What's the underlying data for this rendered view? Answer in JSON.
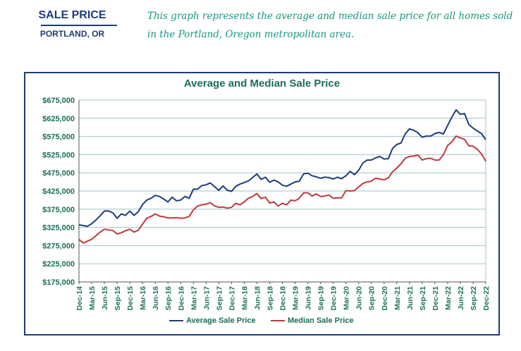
{
  "header": {
    "title": "SALE PRICE",
    "subtitle": "PORTLAND, OR",
    "description": "This graph represents the average and median sale price for all homes sold in the Portland, Oregon metropolitan area."
  },
  "chart_data": {
    "type": "line",
    "title": "Average and Median Sale Price",
    "xlabel": "",
    "ylabel": "",
    "ylim": [
      175000,
      675000
    ],
    "yticks": [
      175000,
      225000,
      275000,
      325000,
      375000,
      425000,
      475000,
      525000,
      575000,
      625000,
      675000
    ],
    "ytick_labels": [
      "$175,000",
      "$225,000",
      "$275,000",
      "$325,000",
      "$375,000",
      "$425,000",
      "$475,000",
      "$525,000",
      "$575,000",
      "$625,000",
      "$675,000"
    ],
    "xtick_labels": [
      "Dec-14",
      "Mar-15",
      "Jun-15",
      "Sep-15",
      "Dec-15",
      "Mar-16",
      "Jun-16",
      "Sep-16",
      "Dec-16",
      "Mar-17",
      "Jun-17",
      "Sep-17",
      "Dec-17",
      "Mar-18",
      "Jun-18",
      "Sep-18",
      "Dec-18",
      "Mar-19",
      "Jun-19",
      "Sep-19",
      "Dec-19",
      "Mar-20",
      "Jun-20",
      "Sep-20",
      "Dec-20",
      "Mar-21",
      "Jun-21",
      "Sep-21",
      "Dec-21",
      "Mar-22",
      "Jun-22",
      "Sep-22",
      "Dec-22"
    ],
    "grid": true,
    "legend_position": "bottom",
    "colors": {
      "average": "#1f3c78",
      "median": "#c0393b",
      "grid": "#9fc3c9",
      "tick_text": "#1b6e5a",
      "axis": "#555555"
    },
    "series": [
      {
        "name": "Average Sale Price",
        "values": [
          332000,
          330000,
          328000,
          335000,
          345000,
          357000,
          370000,
          370000,
          365000,
          350000,
          362000,
          358000,
          370000,
          358000,
          368000,
          388000,
          400000,
          405000,
          413000,
          410000,
          403000,
          395000,
          408000,
          398000,
          400000,
          410000,
          405000,
          430000,
          430000,
          440000,
          442000,
          447000,
          437000,
          427000,
          439000,
          427000,
          424000,
          438000,
          444000,
          448000,
          453000,
          462000,
          472000,
          457000,
          463000,
          449000,
          455000,
          450000,
          441000,
          438000,
          444000,
          450000,
          452000,
          472000,
          474000,
          467000,
          464000,
          460000,
          463000,
          462000,
          458000,
          463000,
          459000,
          467000,
          479000,
          470000,
          482000,
          502000,
          510000,
          510000,
          516000,
          520000,
          513000,
          514000,
          542000,
          553000,
          557000,
          582000,
          596000,
          592000,
          585000,
          573000,
          576000,
          576000,
          583000,
          586000,
          582000,
          605000,
          628000,
          648000,
          636000,
          638000,
          608000,
          598000,
          590000,
          583000,
          566000
        ]
      },
      {
        "name": "Median Sale Price",
        "values": [
          292000,
          282000,
          287000,
          292000,
          302000,
          312000,
          320000,
          318000,
          316000,
          307000,
          310000,
          316000,
          320000,
          312000,
          317000,
          334000,
          350000,
          355000,
          362000,
          356000,
          354000,
          351000,
          351000,
          352000,
          350000,
          351000,
          355000,
          373000,
          384000,
          387000,
          389000,
          393000,
          384000,
          380000,
          381000,
          378000,
          380000,
          391000,
          387000,
          395000,
          405000,
          410000,
          418000,
          404000,
          408000,
          392000,
          395000,
          384000,
          391000,
          387000,
          400000,
          398000,
          405000,
          420000,
          420000,
          411000,
          417000,
          410000,
          411000,
          414000,
          405000,
          406000,
          406000,
          426000,
          425000,
          426000,
          436000,
          446000,
          450000,
          452000,
          460000,
          458000,
          456000,
          461000,
          478000,
          488000,
          500000,
          515000,
          520000,
          521000,
          524000,
          510000,
          514000,
          515000,
          510000,
          510000,
          525000,
          550000,
          560000,
          576000,
          571000,
          567000,
          549000,
          548000,
          540000,
          527000,
          507000
        ]
      }
    ]
  }
}
